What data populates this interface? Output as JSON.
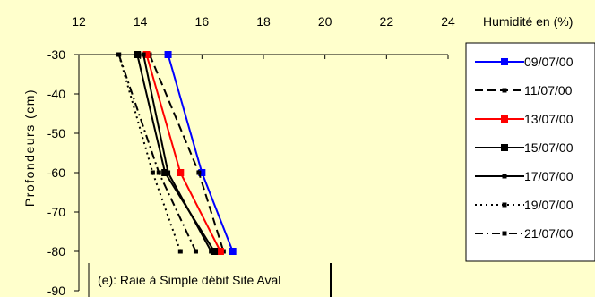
{
  "chart_data": {
    "type": "line",
    "title": "",
    "subtitle": "",
    "xlabel": "Humidité en (%)",
    "ylabel": "Profondeurs (cm)",
    "xlim": [
      12,
      24
    ],
    "ylim": [
      -90,
      -30
    ],
    "x_ticks": [
      12,
      14,
      16,
      18,
      20,
      22,
      24
    ],
    "y_ticks": [
      -30,
      -40,
      -50,
      -60,
      -70,
      -80,
      -90
    ],
    "grid": false,
    "legend_position": "right",
    "annotation": "(e): Raie à Simple débit Site Aval",
    "series": [
      {
        "name": "09/07/00",
        "color": "#0000ff",
        "style": "solid",
        "marker": "square",
        "points": [
          {
            "x": 14.9,
            "y": -30
          },
          {
            "x": 16.0,
            "y": -60
          },
          {
            "x": 17.0,
            "y": -80
          }
        ]
      },
      {
        "name": "11/07/00",
        "color": "#000000",
        "style": "dashed",
        "marker": "small-square",
        "points": [
          {
            "x": 14.3,
            "y": -30
          },
          {
            "x": 15.9,
            "y": -60
          },
          {
            "x": 16.7,
            "y": -80
          }
        ]
      },
      {
        "name": "13/07/00",
        "color": "#ff0000",
        "style": "solid",
        "marker": "square",
        "points": [
          {
            "x": 14.2,
            "y": -30
          },
          {
            "x": 15.3,
            "y": -60
          },
          {
            "x": 16.6,
            "y": -80
          }
        ]
      },
      {
        "name": "15/07/00",
        "color": "#000000",
        "style": "solid",
        "marker": "square",
        "points": [
          {
            "x": 13.9,
            "y": -30
          },
          {
            "x": 14.8,
            "y": -60
          },
          {
            "x": 16.4,
            "y": -80
          }
        ]
      },
      {
        "name": "17/07/00",
        "color": "#000000",
        "style": "solid",
        "marker": "small-square",
        "points": [
          {
            "x": 14.1,
            "y": -30
          },
          {
            "x": 14.9,
            "y": -60
          },
          {
            "x": 16.3,
            "y": -80
          }
        ]
      },
      {
        "name": "19/07/00",
        "color": "#000000",
        "style": "dotted",
        "marker": "small-square",
        "points": [
          {
            "x": 13.3,
            "y": -30
          },
          {
            "x": 14.4,
            "y": -60
          },
          {
            "x": 15.3,
            "y": -80
          }
        ]
      },
      {
        "name": "21/07/00",
        "color": "#000000",
        "style": "dashdot",
        "marker": "small-square",
        "points": [
          {
            "x": 13.3,
            "y": -30
          },
          {
            "x": 14.6,
            "y": -60
          },
          {
            "x": 15.8,
            "y": -80
          }
        ]
      }
    ]
  }
}
